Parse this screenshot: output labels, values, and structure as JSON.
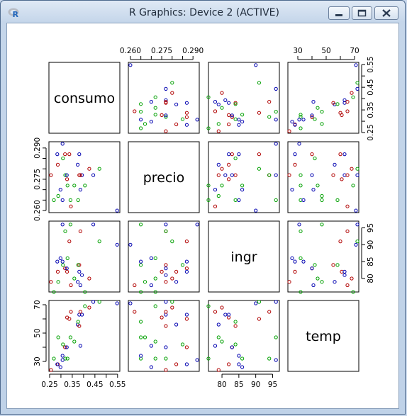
{
  "window": {
    "title": "R Graphics: Device 2 (ACTIVE)",
    "icon": "r-logo-icon",
    "controls": [
      "minimize-icon",
      "maximize-icon",
      "close-icon"
    ]
  },
  "chart_data": {
    "type": "scatter",
    "variables": [
      "consumo",
      "precio",
      "ingr",
      "temp"
    ],
    "point_colors": [
      "#0000b0",
      "#b00000",
      "#00a000"
    ],
    "ranges": {
      "consumo": [
        0.247,
        0.56
      ],
      "precio": [
        0.259,
        0.293
      ],
      "ingr": [
        76,
        97
      ],
      "temp": [
        23,
        73
      ]
    },
    "ticks": {
      "consumo": [
        "0.25",
        "0.35",
        "0.45",
        "0.55"
      ],
      "precio": [
        "0.260",
        "0.275",
        "0.290"
      ],
      "ingr": [
        "80",
        "85",
        "90",
        "95"
      ],
      "temp": [
        "30",
        "50",
        "70"
      ]
    },
    "minor_ticks": {
      "consumo": [
        0.3,
        0.4,
        0.5
      ],
      "precio": [
        0.265,
        0.27,
        0.28,
        0.285
      ],
      "temp": [
        40,
        60
      ]
    },
    "observations": [
      {
        "consumo": 0.386,
        "precio": 0.27,
        "ingr": 78,
        "temp": 41,
        "group": 0
      },
      {
        "consumo": 0.374,
        "precio": 0.282,
        "ingr": 79,
        "temp": 56,
        "group": 0
      },
      {
        "consumo": 0.393,
        "precio": 0.277,
        "ingr": 81,
        "temp": 63,
        "group": 0
      },
      {
        "consumo": 0.425,
        "precio": 0.28,
        "ingr": 80,
        "temp": 68,
        "group": 1
      },
      {
        "consumo": 0.406,
        "precio": 0.272,
        "ingr": 76,
        "temp": 69,
        "group": 2
      },
      {
        "consumo": 0.344,
        "precio": 0.262,
        "ingr": 78,
        "temp": 65,
        "group": 1
      },
      {
        "consumo": 0.327,
        "precio": 0.275,
        "ingr": 82,
        "temp": 61,
        "group": 1
      },
      {
        "consumo": 0.288,
        "precio": 0.267,
        "ingr": 79,
        "temp": 47,
        "group": 2
      },
      {
        "consumo": 0.269,
        "precio": 0.265,
        "ingr": 76,
        "temp": 32,
        "group": 2
      },
      {
        "consumo": 0.256,
        "precio": 0.277,
        "ingr": 79,
        "temp": 24,
        "group": 1
      },
      {
        "consumo": 0.286,
        "precio": 0.282,
        "ingr": 82,
        "temp": 28,
        "group": 1
      },
      {
        "consumo": 0.298,
        "precio": 0.27,
        "ingr": 86,
        "temp": 26,
        "group": 0
      },
      {
        "consumo": 0.329,
        "precio": 0.272,
        "ingr": 86,
        "temp": 32,
        "group": 2
      },
      {
        "consumo": 0.318,
        "precio": 0.287,
        "ingr": 83,
        "temp": 40,
        "group": 1
      },
      {
        "consumo": 0.381,
        "precio": 0.277,
        "ingr": 84,
        "temp": 55,
        "group": 1
      },
      {
        "consumo": 0.381,
        "precio": 0.287,
        "ingr": 82,
        "temp": 63,
        "group": 0
      },
      {
        "consumo": 0.47,
        "precio": 0.28,
        "ingr": 91,
        "temp": 72,
        "group": 2
      },
      {
        "consumo": 0.443,
        "precio": 0.277,
        "ingr": 96,
        "temp": 72,
        "group": 0
      },
      {
        "consumo": 0.386,
        "precio": 0.277,
        "ingr": 94,
        "temp": 65,
        "group": 1
      },
      {
        "consumo": 0.342,
        "precio": 0.265,
        "ingr": 96,
        "temp": 47,
        "group": 2
      },
      {
        "consumo": 0.319,
        "precio": 0.277,
        "ingr": 94,
        "temp": 32,
        "group": 2
      },
      {
        "consumo": 0.307,
        "precio": 0.292,
        "ingr": 96,
        "temp": 31,
        "group": 0
      },
      {
        "consumo": 0.284,
        "precio": 0.287,
        "ingr": 85,
        "temp": 28,
        "group": 0
      },
      {
        "consumo": 0.326,
        "precio": 0.277,
        "ingr": 83,
        "temp": 40,
        "group": 0
      },
      {
        "consumo": 0.309,
        "precio": 0.285,
        "ingr": 84,
        "temp": 42,
        "group": 2
      },
      {
        "consumo": 0.359,
        "precio": 0.272,
        "ingr": 80,
        "temp": 44,
        "group": 2
      },
      {
        "consumo": 0.376,
        "precio": 0.265,
        "ingr": 84,
        "temp": 58,
        "group": 2
      },
      {
        "consumo": 0.548,
        "precio": 0.26,
        "ingr": 90,
        "temp": 71,
        "group": 0
      },
      {
        "consumo": 0.337,
        "precio": 0.287,
        "ingr": 91,
        "temp": 60,
        "group": 1
      },
      {
        "consumo": 0.307,
        "precio": 0.265,
        "ingr": 85,
        "temp": 34,
        "group": 0
      }
    ]
  }
}
